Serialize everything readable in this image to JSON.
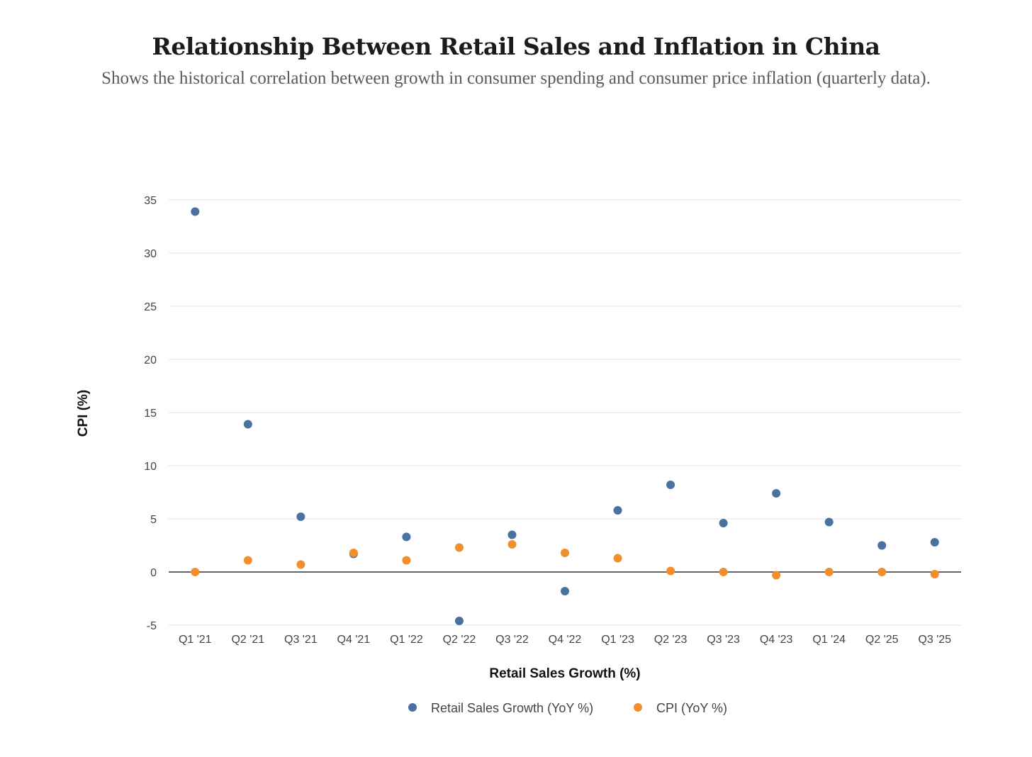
{
  "chart_data": {
    "type": "scatter",
    "title": "Relationship Between Retail Sales and Inflation in China",
    "subtitle": "Shows the historical correlation between growth in consumer spending and consumer price inflation (quarterly data).",
    "xlabel": "Retail Sales Growth (%)",
    "ylabel": "CPI (%)",
    "ylim": [
      -5,
      35
    ],
    "yticks": [
      -5,
      0,
      5,
      10,
      15,
      20,
      25,
      30,
      35
    ],
    "categories": [
      "Q1 '21",
      "Q2 '21",
      "Q3 '21",
      "Q4 '21",
      "Q1 '22",
      "Q2 '22",
      "Q3 '22",
      "Q4 '22",
      "Q1 '23",
      "Q2 '23",
      "Q3 '23",
      "Q4 '23",
      "Q1 '24",
      "Q2 '25",
      "Q3 '25"
    ],
    "series": [
      {
        "name": "Retail Sales Growth (YoY %)",
        "color": "#4a72a0",
        "values": [
          33.9,
          13.9,
          5.2,
          1.7,
          3.3,
          -4.6,
          3.5,
          -1.8,
          5.8,
          8.2,
          4.6,
          7.4,
          4.7,
          2.5,
          2.8
        ]
      },
      {
        "name": "CPI (YoY %)",
        "color": "#f28e2b",
        "values": [
          0.0,
          1.1,
          0.7,
          1.8,
          1.1,
          2.3,
          2.6,
          1.8,
          1.3,
          0.1,
          0.0,
          -0.3,
          0.0,
          0.0,
          -0.2
        ]
      }
    ],
    "legend_position": "bottom",
    "grid": true
  }
}
